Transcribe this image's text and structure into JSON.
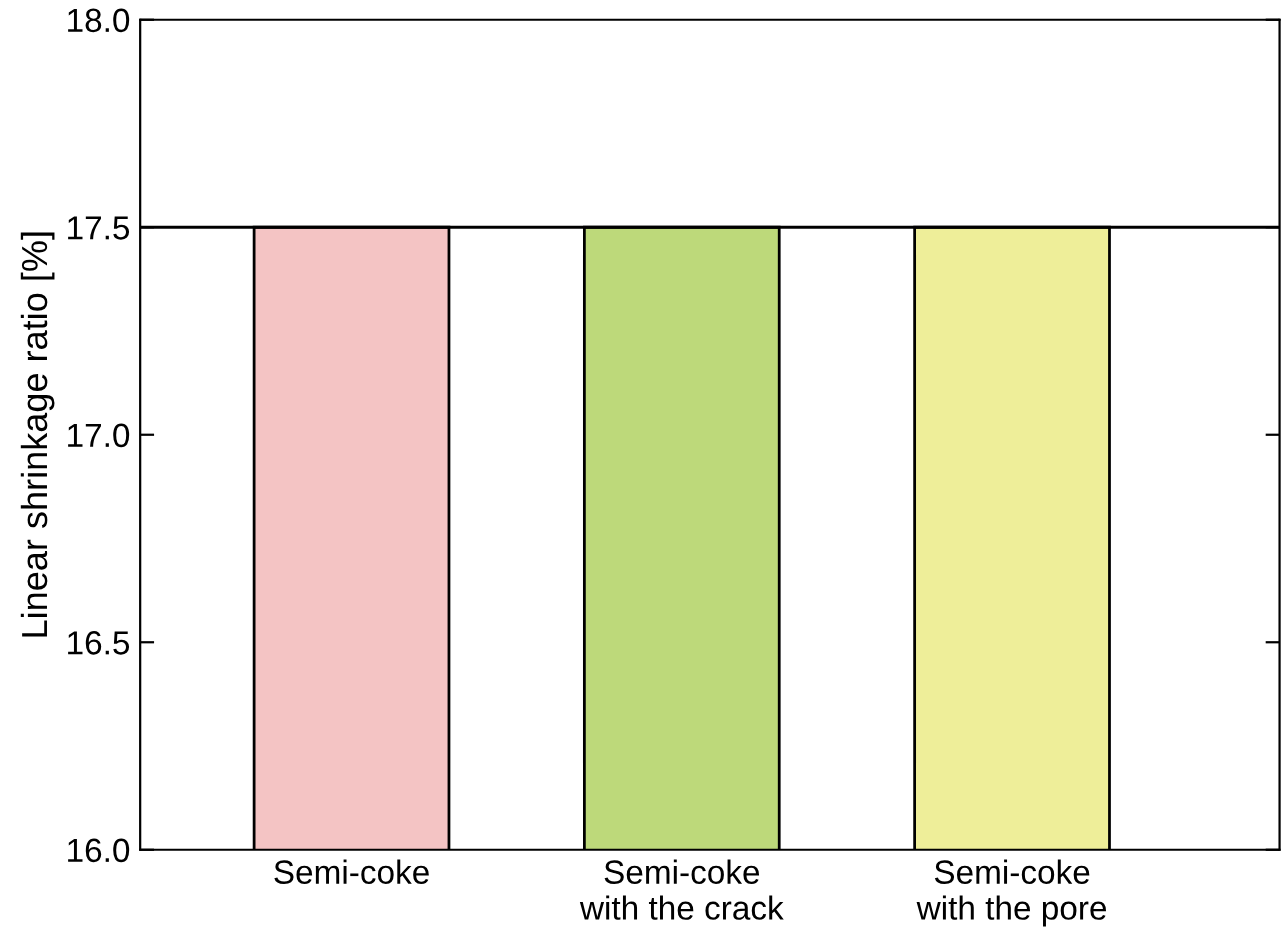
{
  "chart_data": {
    "type": "bar",
    "ylabel": "Linear shrinkage ratio [%]",
    "categories": [
      "Semi-coke",
      "Semi-coke\nwith the crack",
      "Semi-coke\nwith the pore"
    ],
    "values": [
      17.5,
      17.5,
      17.5
    ],
    "colors": [
      "#f4c4c4",
      "#bdd97a",
      "#eeee99"
    ],
    "ylim": [
      16.0,
      18.0
    ],
    "yticks": [
      {
        "value": 16.0,
        "label": "16.0"
      },
      {
        "value": 16.5,
        "label": "16.5"
      },
      {
        "value": 17.0,
        "label": "17.0"
      },
      {
        "value": 17.5,
        "label": "17.5"
      },
      {
        "value": 18.0,
        "label": "18.0"
      }
    ],
    "ref_lines": [
      {
        "axis": "y",
        "value": 17.5,
        "color": "#000000"
      }
    ],
    "grid": false,
    "legend": false
  }
}
